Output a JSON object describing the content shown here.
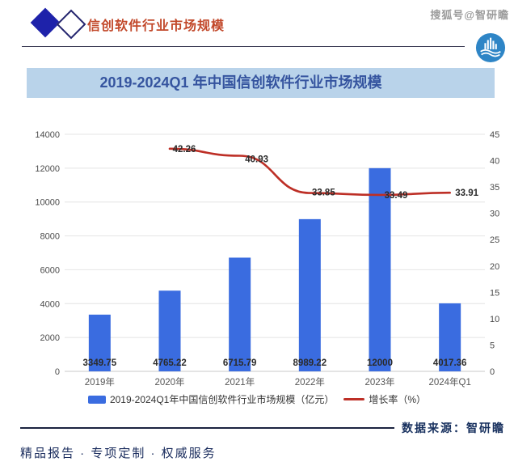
{
  "header": {
    "title": "信创软件行业市场规模",
    "watermark": "搜狐号@智研瞻"
  },
  "banner": {
    "title": "2019-2024Q1 年中国信创软件行业市场规模"
  },
  "chart_data": {
    "type": "bar",
    "categories": [
      "2019年",
      "2020年",
      "2021年",
      "2022年",
      "2023年",
      "2024年Q1"
    ],
    "series": [
      {
        "name": "2019-2024Q1年中国信创软件行业市场规模（亿元）",
        "type": "bar",
        "axis": "left",
        "color": "#3a6ce0",
        "values": [
          3349.75,
          4765.22,
          6715.79,
          8989.22,
          12000,
          4017.36
        ]
      },
      {
        "name": "增长率（%）",
        "type": "line",
        "axis": "right",
        "color": "#bd2f26",
        "values": [
          null,
          42.26,
          40.93,
          33.85,
          33.49,
          33.91
        ]
      }
    ],
    "left_axis": {
      "min": 0,
      "max": 14000,
      "step": 2000
    },
    "right_axis": {
      "min": 0,
      "max": 45,
      "step": 5
    },
    "grid": true,
    "legend_position": "bottom"
  },
  "legend": {
    "items": [
      {
        "label": "2019-2024Q1年中国信创软件行业市场规模（亿元）"
      },
      {
        "label": "增长率（%）"
      }
    ]
  },
  "footer": {
    "source": "数据来源：智研瞻",
    "tagline": "精品报告 · 专项定制 · 权威服务"
  },
  "colors": {
    "bar": "#3a6ce0",
    "line": "#bd2f26",
    "banner_bg": "#b9d3ea",
    "banner_text": "#35549f",
    "header_title": "#c2482a",
    "navy": "#17305e"
  }
}
